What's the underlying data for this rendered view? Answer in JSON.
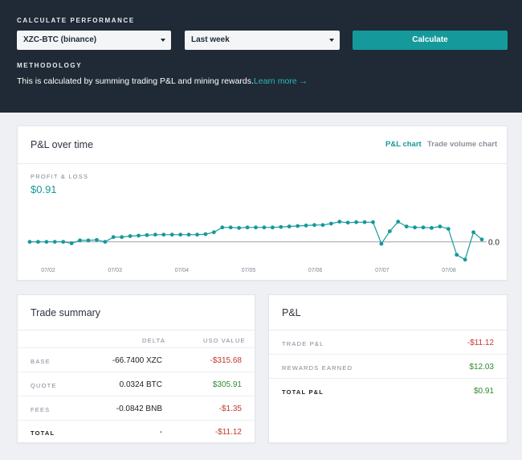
{
  "header": {
    "section_label": "CALCULATE PERFORMANCE",
    "pair_select": "XZC-BTC (binance)",
    "period_select": "Last week",
    "calculate_label": "Calculate",
    "methodology_label": "METHODOLOGY",
    "methodology_text": "This is calculated by summing trading P&L and mining rewards.",
    "learn_more": "Learn more →"
  },
  "pl_card": {
    "title": "P&L over time",
    "tabs": [
      "P&L chart",
      "Trade volume chart"
    ],
    "active_tab": "P&L chart",
    "metric_label": "PROFIT & LOSS",
    "metric_value": "$0.91"
  },
  "chart_data": {
    "type": "line",
    "series": [
      {
        "values": [
          0,
          0,
          0,
          0,
          0,
          -0.15,
          0.15,
          0.15,
          0.2,
          0,
          0.5,
          0.5,
          0.6,
          0.65,
          0.7,
          0.75,
          0.75,
          0.75,
          0.75,
          0.75,
          0.75,
          0.8,
          1.0,
          1.5,
          1.5,
          1.45,
          1.5,
          1.5,
          1.5,
          1.5,
          1.55,
          1.6,
          1.65,
          1.7,
          1.75,
          1.75,
          1.9,
          2.1,
          2.0,
          2.05,
          2.05,
          2.05,
          -0.2,
          1.1,
          2.1,
          1.6,
          1.5,
          1.5,
          1.45,
          1.6,
          1.35,
          -1.35,
          -1.85,
          1.0,
          0.25
        ]
      }
    ],
    "x_ticks": [
      "07/02",
      "07/03",
      "07/04",
      "07/05",
      "07/06",
      "07/07",
      "07/08"
    ],
    "zero_label": "0.0",
    "ylim": [
      -2.2,
      4.5
    ],
    "baseline": 0,
    "color": "#15999b"
  },
  "trade_summary": {
    "title": "Trade summary",
    "col_delta": "DELTA",
    "col_usd": "USD VALUE",
    "rows": [
      {
        "label": "BASE",
        "delta": "-66.7400 XZC",
        "usd": "-$315.68"
      },
      {
        "label": "QUOTE",
        "delta": "0.0324 BTC",
        "usd": "$305.91"
      },
      {
        "label": "FEES",
        "delta": "-0.0842 BNB",
        "usd": "-$1.35"
      },
      {
        "label": "TOTAL",
        "delta": "-",
        "usd": "-$11.12"
      }
    ]
  },
  "pl_summary": {
    "title": "P&L",
    "rows": [
      {
        "label": "TRADE P&L",
        "value": "-$11.12"
      },
      {
        "label": "REWARDS EARNED",
        "value": "$12.03"
      },
      {
        "label": "TOTAL P&L",
        "value": "$0.91"
      }
    ]
  }
}
